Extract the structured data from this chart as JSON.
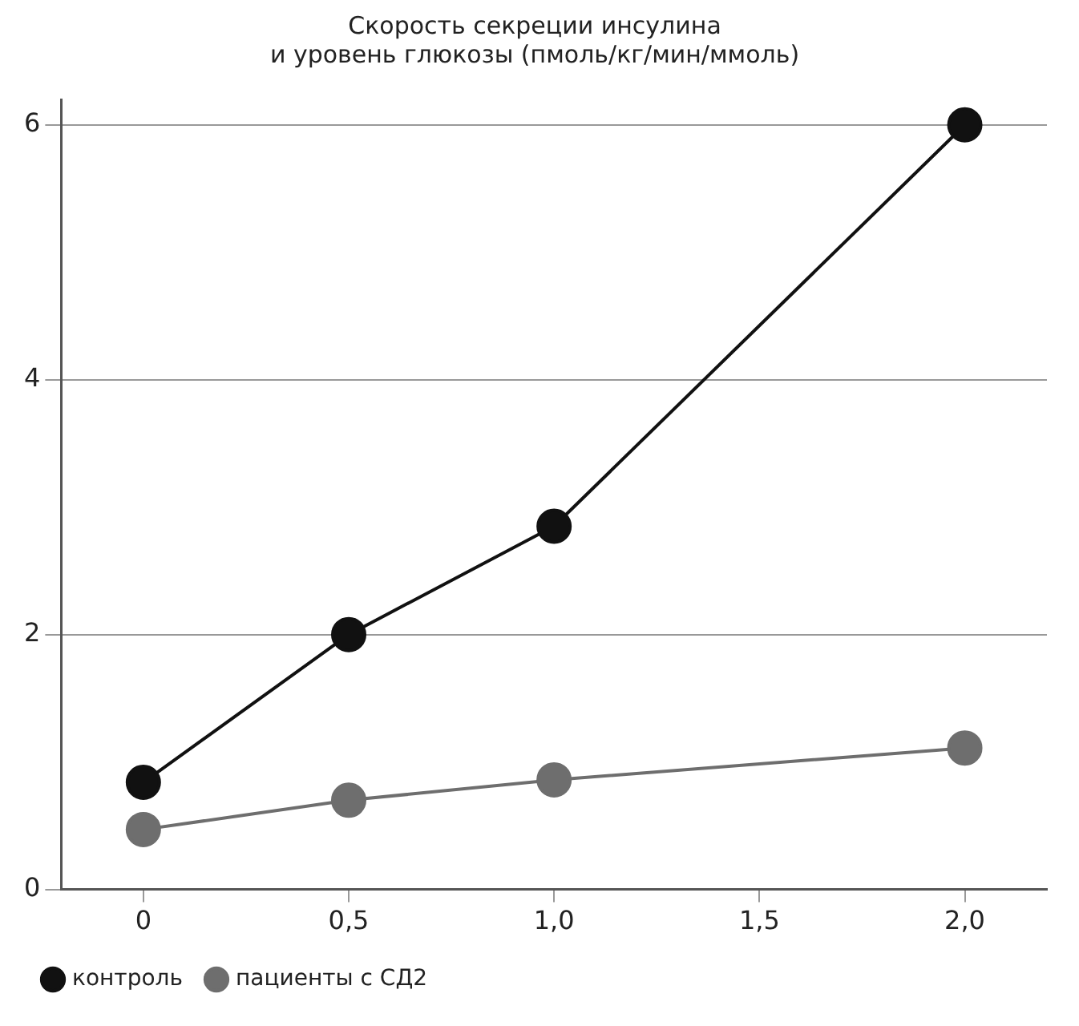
{
  "chart_data": {
    "type": "line",
    "title": "Скорость секреции инсулина\nи уровень глюкозы (пмоль/кг/мин/ммоль)",
    "x": [
      0,
      0.5,
      1.0,
      2.0
    ],
    "series": [
      {
        "name": "контроль",
        "color": "#111111",
        "values": [
          0.84,
          2.0,
          2.85,
          6.0
        ]
      },
      {
        "name": "пациенты с СД2",
        "color": "#6e6e6e",
        "values": [
          0.47,
          0.7,
          0.86,
          1.11
        ]
      }
    ],
    "xlim": [
      -0.2,
      2.2
    ],
    "xticks": [
      {
        "value": 0,
        "label": "0"
      },
      {
        "value": 0.5,
        "label": "0,5"
      },
      {
        "value": 1,
        "label": "1,0"
      },
      {
        "value": 1.5,
        "label": "1,5"
      },
      {
        "value": 2,
        "label": "2,0"
      }
    ],
    "ylim": [
      0,
      6.2
    ],
    "yticks": [
      0,
      2,
      4,
      6
    ],
    "grid": "y",
    "legend": "bottom left",
    "marker": "circle",
    "line_style": "solid"
  }
}
